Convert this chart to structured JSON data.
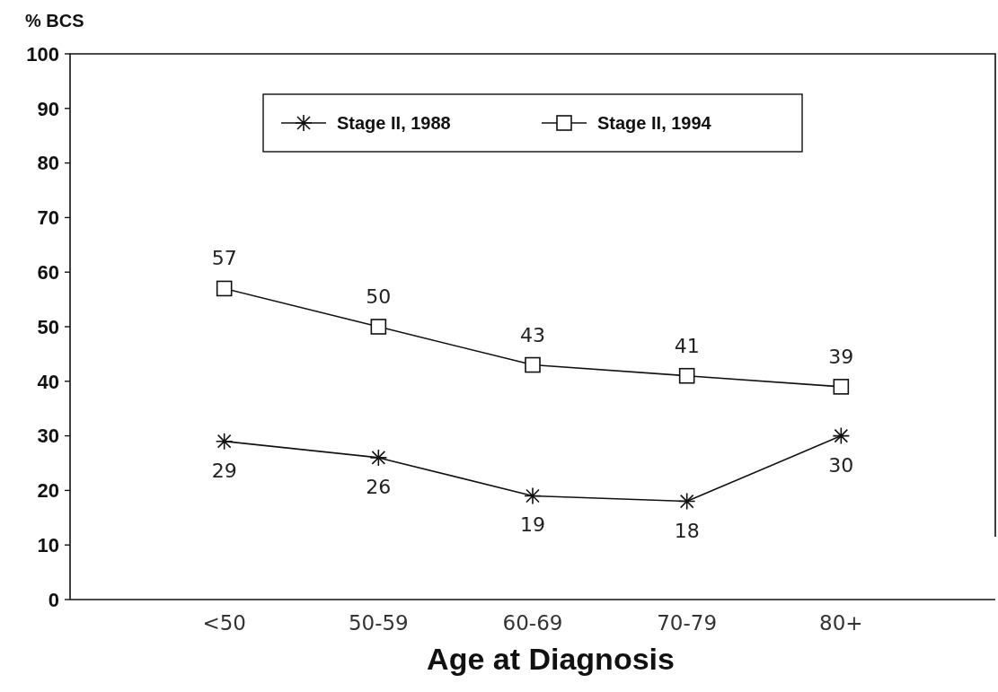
{
  "chart_data": {
    "type": "line",
    "ylabel": "% BCS",
    "xlabel": "Age at Diagnosis",
    "categories": [
      "<50",
      "50-59",
      "60-69",
      "70-79",
      "80+"
    ],
    "series": [
      {
        "name": "Stage II, 1988",
        "color": "#111111",
        "marker": "cross",
        "values": [
          29,
          26,
          19,
          18,
          30
        ]
      },
      {
        "name": "Stage II, 1994",
        "color": "#111111",
        "marker": "square",
        "values": [
          57,
          50,
          43,
          41,
          39
        ]
      }
    ],
    "ylim": [
      0,
      100
    ],
    "yticks": [
      0,
      10,
      20,
      30,
      40,
      50,
      60,
      70,
      80,
      90,
      100
    ],
    "data_labels": true,
    "legend": "top",
    "grid": false,
    "line_style": "solid"
  }
}
